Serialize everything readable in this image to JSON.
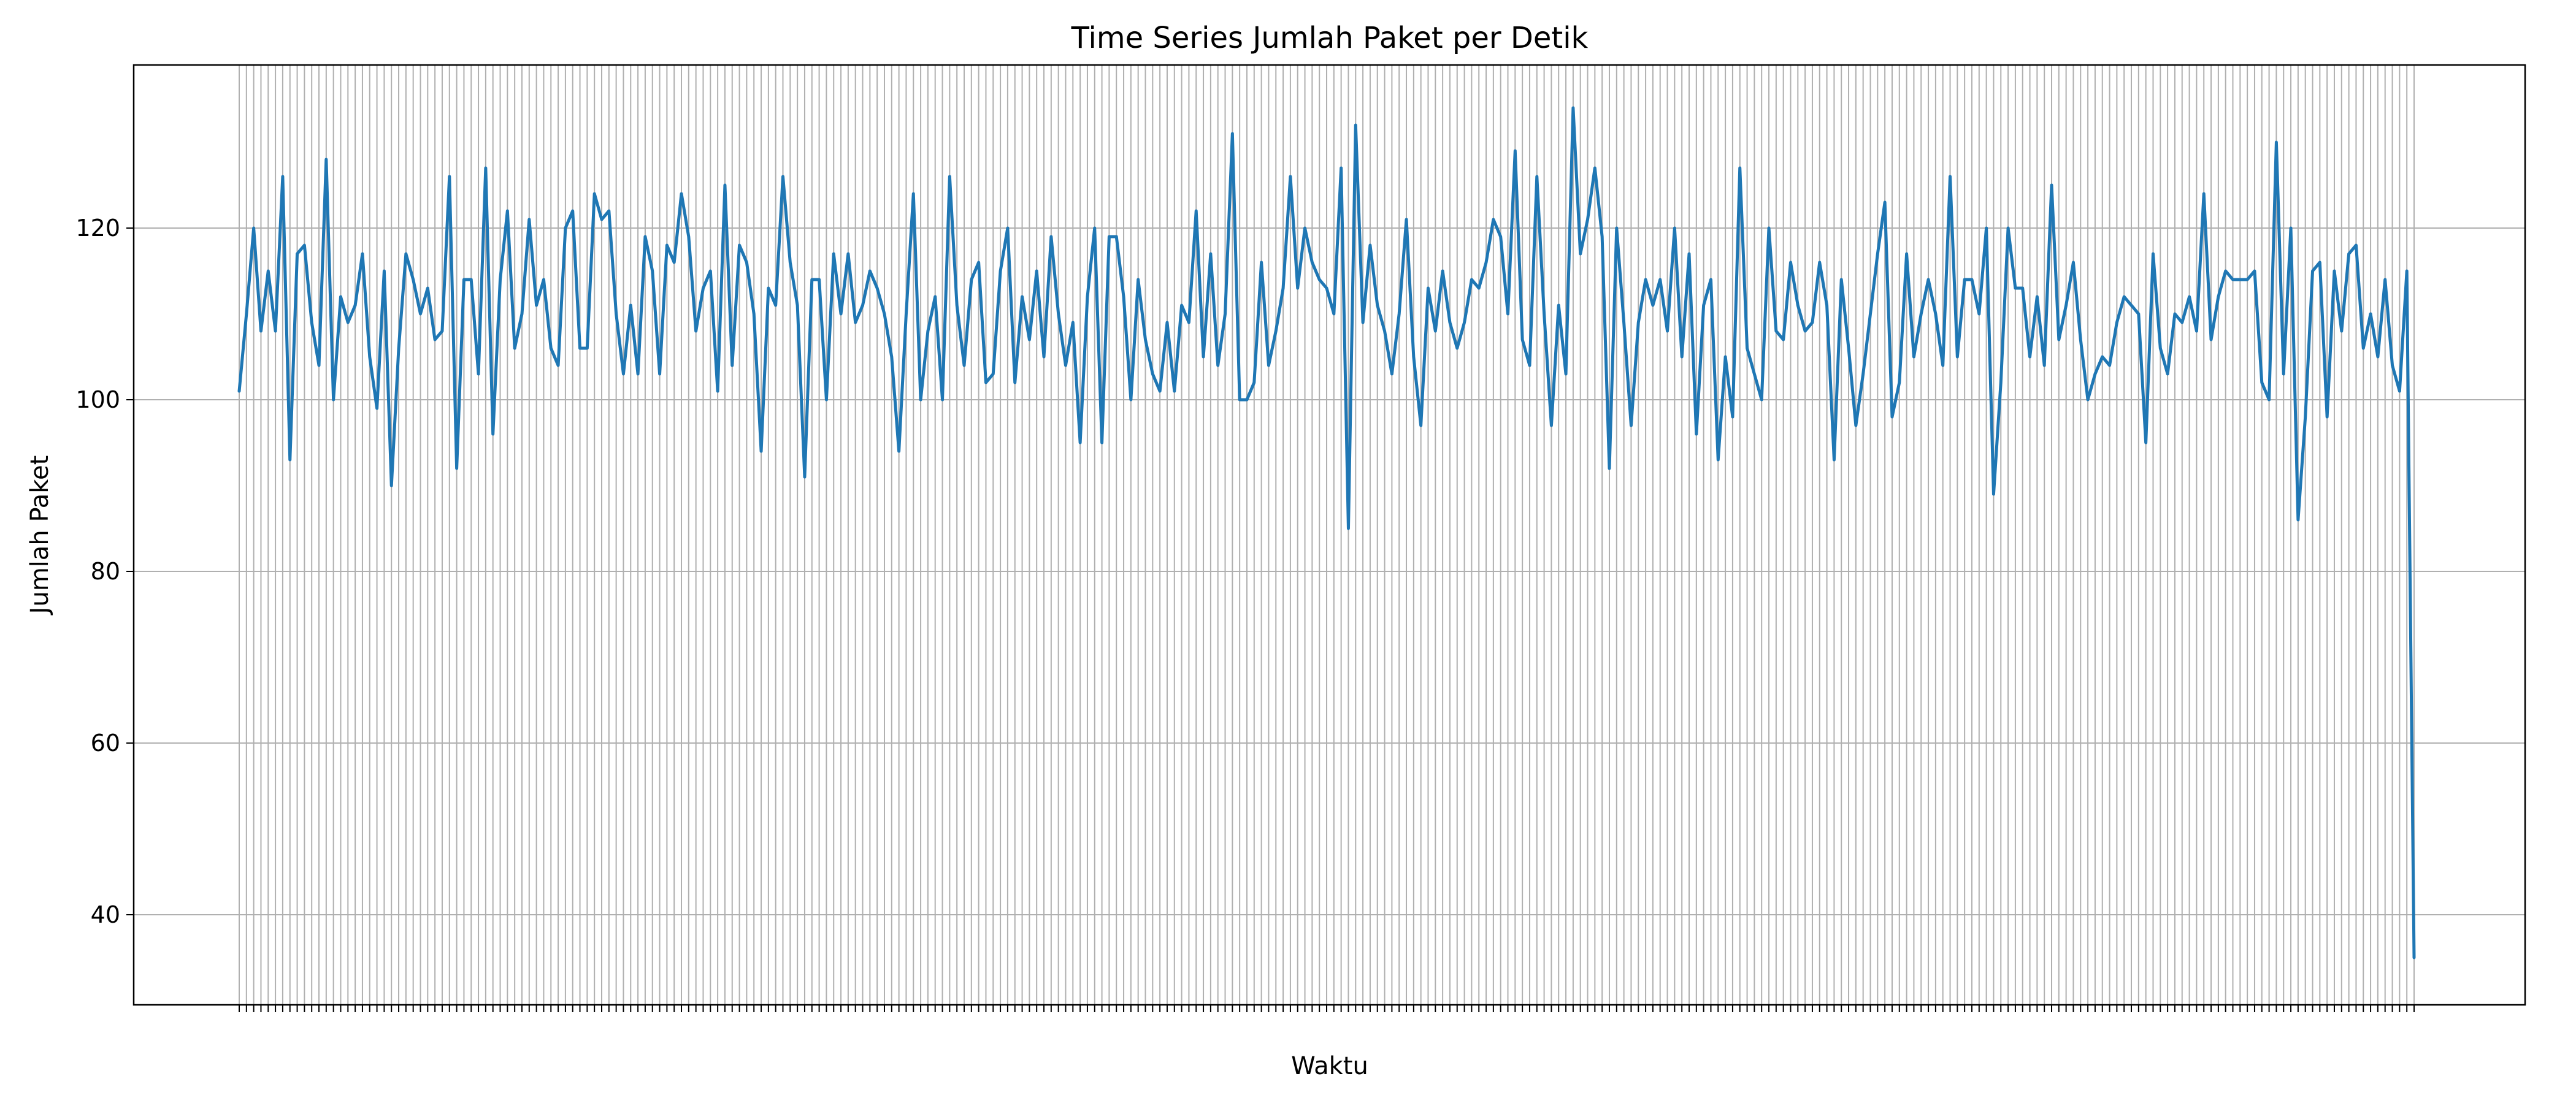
{
  "chart_data": {
    "type": "line",
    "title": "Time Series Jumlah Paket per Detik",
    "xlabel": "Waktu",
    "ylabel": "Jumlah Paket",
    "ylim": [
      29.5,
      139
    ],
    "yticks": [
      40,
      60,
      80,
      100,
      120
    ],
    "grid": true,
    "line_color": "#1f77b4",
    "x_tick_labels_note": "",
    "series": [
      {
        "values": [
          101,
          110,
          120,
          108,
          115,
          108,
          126,
          93,
          117,
          118,
          109,
          104,
          128,
          100,
          112,
          109,
          111,
          117,
          105,
          99,
          115,
          90,
          106,
          117,
          114,
          110,
          113,
          107,
          108,
          126,
          92,
          114,
          114,
          103,
          127,
          96,
          114,
          122,
          106,
          110,
          121,
          111,
          114,
          106,
          104,
          120,
          122,
          106,
          106,
          124,
          121,
          122,
          110,
          103,
          111,
          103,
          119,
          115,
          103,
          118,
          116,
          124,
          119,
          108,
          113,
          115,
          101,
          125,
          104,
          118,
          116,
          110,
          94,
          113,
          111,
          126,
          116,
          111,
          91,
          114,
          114,
          100,
          117,
          110,
          117,
          109,
          111,
          115,
          113,
          110,
          105,
          94,
          110,
          124,
          100,
          108,
          112,
          100,
          126,
          111,
          104,
          114,
          116,
          102,
          103,
          115,
          120,
          102,
          112,
          107,
          115,
          105,
          119,
          110,
          104,
          109,
          95,
          112,
          120,
          95,
          119,
          119,
          112,
          100,
          114,
          107,
          103,
          101,
          109,
          101,
          111,
          109,
          122,
          105,
          117,
          104,
          110,
          131,
          100,
          100,
          102,
          116,
          104,
          108,
          113,
          126,
          113,
          120,
          116,
          114,
          113,
          110,
          127,
          85,
          132,
          109,
          118,
          111,
          108,
          103,
          110,
          121,
          105,
          97,
          113,
          108,
          115,
          109,
          106,
          109,
          114,
          113,
          116,
          121,
          119,
          110,
          129,
          107,
          104,
          126,
          110,
          97,
          111,
          103,
          134,
          117,
          121,
          127,
          119,
          92,
          120,
          109,
          97,
          109,
          114,
          111,
          114,
          108,
          120,
          105,
          117,
          96,
          111,
          114,
          93,
          105,
          98,
          127,
          106,
          103,
          100,
          120,
          108,
          107,
          116,
          111,
          108,
          109,
          116,
          111,
          93,
          114,
          106,
          97,
          103,
          110,
          117,
          123,
          98,
          102,
          117,
          105,
          110,
          114,
          110,
          104,
          126,
          105,
          114,
          114,
          110,
          120,
          89,
          102,
          120,
          113,
          113,
          105,
          112,
          104,
          125,
          107,
          111,
          116,
          107,
          100,
          103,
          105,
          104,
          109,
          112,
          111,
          110,
          95,
          117,
          106,
          103,
          110,
          109,
          112,
          108,
          124,
          107,
          112,
          115,
          114,
          114,
          114,
          115,
          102,
          100,
          130,
          103,
          120,
          86,
          98,
          115,
          116,
          98,
          115,
          108,
          117,
          118,
          106,
          110,
          105,
          114,
          104,
          101,
          115,
          35
        ]
      }
    ]
  }
}
